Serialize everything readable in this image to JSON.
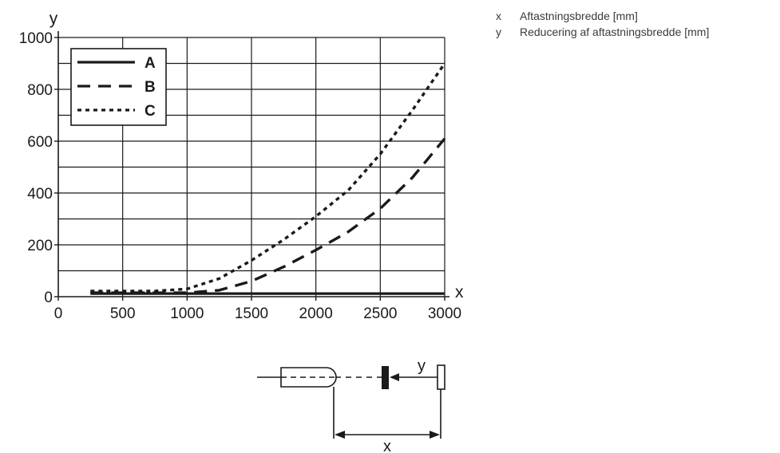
{
  "chart_data": {
    "type": "line",
    "xlabel": "x",
    "ylabel": "y",
    "xlim": [
      0,
      3000
    ],
    "ylim": [
      0,
      1000
    ],
    "x_ticks": [
      "0",
      "500",
      "1000",
      "1500",
      "2000",
      "2500",
      "3000"
    ],
    "y_ticks": [
      "0",
      "200",
      "400",
      "600",
      "800",
      "1000"
    ],
    "grid": true,
    "legend_position": "top-left",
    "series": [
      {
        "name": "A",
        "style": "solid",
        "color": "#1a1a1a",
        "x": [
          250,
          3000
        ],
        "y": [
          12,
          12
        ]
      },
      {
        "name": "B",
        "style": "dashed",
        "color": "#1a1a1a",
        "x": [
          250,
          1000,
          1250,
          1500,
          1750,
          2000,
          2250,
          2500,
          2750,
          3000
        ],
        "y": [
          15,
          15,
          25,
          60,
          115,
          180,
          250,
          340,
          460,
          610
        ]
      },
      {
        "name": "C",
        "style": "dotted",
        "color": "#1a1a1a",
        "x": [
          250,
          750,
          1000,
          1250,
          1500,
          1750,
          2000,
          2250,
          2500,
          2750,
          3000
        ],
        "y": [
          22,
          22,
          30,
          70,
          140,
          220,
          310,
          410,
          550,
          720,
          900
        ]
      }
    ]
  },
  "key": [
    {
      "symbol": "x",
      "text": "Aftastningsbredde [mm]"
    },
    {
      "symbol": "y",
      "text": "Reducering af aftastningsbredde [mm]"
    }
  ],
  "diagram": {
    "x_label": "x",
    "y_label": "y"
  }
}
